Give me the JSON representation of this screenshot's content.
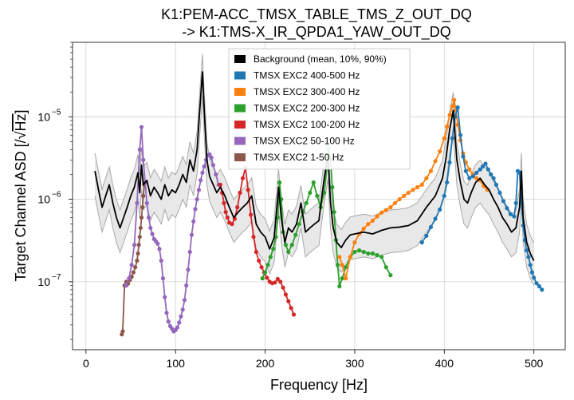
{
  "chart_data": {
    "type": "line",
    "title_lines": [
      "K1:PEM-ACC_TMSX_TABLE_TMS_Z_OUT_DQ",
      "-> K1:TMS-X_IR_QPDA1_YAW_OUT_DQ"
    ],
    "xlabel": "Frequency [Hz]",
    "ylabel_prefix": "Target Channel ASD [/",
    "ylabel_radicand": "Hz",
    "ylabel_suffix": "]",
    "xlim": [
      -15,
      535
    ],
    "ylim": [
      1.5e-08,
      8e-05
    ],
    "y_scale": "log",
    "grid": true,
    "legend_position": "upper-center",
    "x_ticks": [
      0,
      100,
      200,
      300,
      400,
      500
    ],
    "x_tick_labels": [
      "0",
      "100",
      "200",
      "300",
      "400",
      "500"
    ],
    "y_ticks": [
      1e-07,
      1e-06,
      1e-05
    ],
    "y_tick_labels_mantissa": [
      "10",
      "10",
      "10"
    ],
    "y_tick_labels_exponent": [
      "−7",
      "−6",
      "−5"
    ],
    "colors": {
      "background": "#000000",
      "band_fill": "#e8e8e8",
      "band_edge": "#a8a8a8",
      "exc_400_500": "#1f77b4",
      "exc_300_400": "#ff7f0e",
      "exc_200_300": "#2ca02c",
      "exc_100_200": "#d62728",
      "exc_50_100": "#9467bd",
      "exc_1_50": "#8c564b"
    },
    "series": [
      {
        "name": "Background (mean, 10%, 90%)",
        "color": "#000000",
        "x": [
          10,
          14,
          18,
          22,
          26,
          30,
          34,
          38,
          42,
          46,
          50,
          54,
          58,
          60,
          62,
          64,
          68,
          72,
          76,
          80,
          84,
          88,
          92,
          96,
          100,
          104,
          108,
          112,
          116,
          120,
          124,
          127,
          130,
          132,
          135,
          138,
          142,
          146,
          150,
          155,
          160,
          165,
          170,
          175,
          180,
          185,
          190,
          195,
          200,
          205,
          210,
          215,
          218,
          222,
          226,
          230,
          235,
          240,
          245,
          250,
          255,
          260,
          265,
          270,
          273,
          276,
          280,
          285,
          290,
          295,
          300,
          310,
          320,
          330,
          340,
          350,
          360,
          370,
          380,
          390,
          398,
          402,
          406,
          410,
          412,
          414,
          418,
          422,
          426,
          430,
          435,
          440,
          445,
          450,
          455,
          460,
          465,
          470,
          475,
          480,
          484,
          486,
          488,
          492,
          496,
          500
        ],
        "y": [
          2.2e-06,
          1.3e-06,
          8e-07,
          1.1e-06,
          1.5e-06,
          9e-07,
          6e-07,
          4.5e-07,
          6e-07,
          8e-07,
          1.1e-06,
          1.4e-06,
          2.1e-06,
          1.2e-06,
          2.6e-06,
          1.5e-06,
          1.7e-06,
          1.1e-06,
          1.4e-06,
          1.2e-06,
          1e-06,
          1.5e-06,
          1.1e-06,
          1.3e-06,
          1.2e-06,
          1.5e-06,
          2e-06,
          1.6e-06,
          3e-06,
          2.2e-06,
          4e-06,
          1.2e-05,
          3.5e-05,
          1.2e-05,
          3e-06,
          1.9e-06,
          1.5e-06,
          1.2e-06,
          1.4e-06,
          1.1e-06,
          8e-07,
          6e-07,
          7e-07,
          8e-07,
          9e-07,
          1.1e-06,
          5e-07,
          4e-07,
          3.5e-07,
          2.5e-07,
          3.4e-07,
          1.4e-06,
          6e-07,
          3e-07,
          4.5e-07,
          4e-07,
          5e-07,
          9e-07,
          4e-07,
          4.5e-07,
          5e-07,
          5.5e-07,
          1.5e-06,
          3.5e-06,
          9e-07,
          4.5e-07,
          3e-07,
          2.6e-07,
          3.2e-07,
          3.7e-07,
          3.8e-07,
          4e-07,
          3.8e-07,
          4.2e-07,
          4.5e-07,
          4.6e-07,
          4.8e-07,
          5.5e-07,
          8e-07,
          1.1e-06,
          1.8e-06,
          3.2e-06,
          7e-06,
          1.2e-05,
          6e-06,
          3e-06,
          1.6e-06,
          1e-06,
          9e-07,
          1.2e-06,
          1.6e-06,
          1.8e-06,
          1.5e-06,
          1.3e-06,
          1e-06,
          8e-07,
          6e-07,
          5e-07,
          4e-07,
          4.5e-07,
          8e-07,
          2.2e-06,
          6e-07,
          3e-07,
          2.2e-07,
          1.8e-07
        ]
      },
      {
        "name": "TMSX EXC2 400-500 Hz",
        "color": "#1f77b4",
        "x": [
          375,
          380,
          385,
          390,
          395,
          400,
          403,
          406,
          409,
          412,
          415,
          418,
          421,
          424,
          428,
          432,
          436,
          440,
          443,
          446,
          449,
          452,
          455,
          458,
          462,
          466,
          470,
          474,
          478,
          480,
          482,
          484,
          486,
          488,
          490,
          492,
          494,
          496,
          498,
          500,
          503,
          506,
          509
        ],
        "y": [
          3e-07,
          3.6e-07,
          4.6e-07,
          5.8e-07,
          7.5e-07,
          1.1e-06,
          1.6e-06,
          2.8e-06,
          5.5e-06,
          1e-05,
          1.3e-05,
          6e-06,
          3.3e-06,
          2.2e-06,
          1.8e-06,
          1.9e-06,
          2.1e-06,
          2.3e-06,
          2.5e-06,
          2.7e-06,
          2.3e-06,
          2e-06,
          1.8e-06,
          1.5e-06,
          1.2e-06,
          9.5e-07,
          7.8e-07,
          6.6e-07,
          6.2e-07,
          9e-07,
          2.2e-06,
          2.1e-06,
          9e-07,
          4.8e-07,
          3.2e-07,
          2.4e-07,
          2e-07,
          1.6e-07,
          1.3e-07,
          1.12e-07,
          9.6e-08,
          8.8e-08,
          8e-08
        ]
      },
      {
        "name": "TMSX EXC2 300-400 Hz",
        "color": "#ff7f0e",
        "x": [
          283,
          286,
          290,
          295,
          300,
          305,
          310,
          315,
          320,
          325,
          330,
          335,
          340,
          345,
          350,
          355,
          360,
          365,
          370,
          375,
          380,
          385,
          390,
          395,
          400,
          403,
          406,
          409,
          411,
          413,
          415,
          418,
          421,
          424,
          428,
          432,
          436,
          440,
          444,
          448
        ],
        "y": [
          2e-07,
          1.6e-07,
          1.1e-07,
          2e-07,
          3e-07,
          3.8e-07,
          4.4e-07,
          5e-07,
          5.5e-07,
          6.2e-07,
          6.9e-07,
          7.4e-07,
          8e-07,
          9e-07,
          1e-06,
          1.1e-06,
          1.2e-06,
          1.3e-06,
          1.4e-06,
          1.5e-06,
          1.8e-06,
          2.2e-06,
          2.9e-06,
          3.8e-06,
          5.5e-06,
          7.6e-06,
          1.05e-05,
          1.35e-05,
          1.6e-05,
          1.2e-05,
          8e-06,
          5.2e-06,
          3.6e-06,
          2.8e-06,
          2.3e-06,
          2e-06,
          1.8e-06,
          1.7e-06,
          1.45e-06,
          1.3e-06
        ]
      },
      {
        "name": "TMSX EXC2 200-300 Hz",
        "color": "#2ca02c",
        "x": [
          197,
          200,
          203,
          206,
          209,
          212,
          214,
          216,
          218,
          220,
          223,
          226,
          230,
          234,
          238,
          242,
          246,
          250,
          254,
          258,
          262,
          266,
          269,
          271,
          273,
          275,
          277,
          279,
          281,
          283,
          286,
          290,
          295,
          300,
          305,
          310,
          315,
          320,
          325,
          330,
          335,
          340
        ],
        "y": [
          1.1e-07,
          1.3e-07,
          1.6e-07,
          2e-07,
          2.5e-07,
          3.5e-07,
          6e-07,
          1.6e-06,
          1e-06,
          4e-07,
          2.8e-07,
          2.3e-07,
          2.8e-07,
          3.7e-07,
          5e-07,
          7e-07,
          9e-07,
          1.2e-06,
          1.6e-06,
          1.1e-06,
          8e-07,
          1.2e-06,
          2.5e-06,
          4e-06,
          3e-06,
          1.4e-06,
          7e-07,
          3.2e-07,
          1.6e-07,
          8.8e-08,
          1.1e-07,
          1.5e-07,
          2e-07,
          2.3e-07,
          2.4e-07,
          2.3e-07,
          2.2e-07,
          2.2e-07,
          2.1e-07,
          2e-07,
          1.5e-07,
          1.2e-07
        ]
      },
      {
        "name": "TMSX EXC2 100-200 Hz",
        "color": "#d62728",
        "x": [
          150,
          152,
          154,
          156,
          158,
          160,
          163,
          166,
          169,
          172,
          175,
          178,
          181,
          184,
          187,
          190,
          193,
          196,
          199,
          202,
          205,
          208,
          211,
          214,
          217,
          220,
          223,
          226,
          229,
          232
        ],
        "y": [
          1.5e-06,
          1.2e-06,
          9e-07,
          7e-07,
          6e-07,
          5.2e-07,
          5e-07,
          5.8e-07,
          8e-07,
          1.2e-06,
          1.8e-06,
          2.4e-06,
          1.3e-06,
          6.5e-07,
          3.5e-07,
          2.3e-07,
          1.8e-07,
          1.5e-07,
          1.3e-07,
          1.12e-07,
          1e-07,
          9.6e-08,
          9.8e-08,
          1.08e-07,
          1e-07,
          8.5e-08,
          7e-08,
          5.8e-08,
          4.8e-08,
          4e-08
        ]
      },
      {
        "name": "TMSX EXC2 50-100 Hz",
        "color": "#9467bd",
        "x": [
          45,
          48,
          51,
          54,
          57,
          60,
          62,
          64,
          66,
          68,
          70,
          72,
          74,
          76,
          78,
          80,
          82,
          84,
          86,
          88,
          90,
          92,
          94,
          96,
          98,
          100,
          102,
          104,
          106,
          108,
          110,
          112,
          114,
          116,
          118,
          120,
          122,
          124,
          126,
          128,
          130,
          132,
          134,
          136,
          138,
          140,
          142,
          145,
          148
        ],
        "y": [
          9e-08,
          1.1e-07,
          1.6e-07,
          2.8e-07,
          9e-07,
          4e-06,
          7.5e-06,
          3e-06,
          1.6e-06,
          9e-07,
          6e-07,
          4.5e-07,
          3.8e-07,
          3.3e-07,
          3.1e-07,
          2.9e-07,
          2.5e-07,
          1.8e-07,
          1.1e-07,
          6.5e-08,
          4.2e-08,
          3.3e-08,
          2.9e-08,
          2.7e-08,
          2.5e-08,
          2.6e-08,
          2.8e-08,
          3.2e-08,
          3.8e-08,
          4.6e-08,
          6e-08,
          9e-08,
          1.4e-07,
          2.3e-07,
          3.7e-07,
          5.4e-07,
          7.6e-07,
          1e-06,
          1.3e-06,
          1.7e-06,
          2.1e-06,
          2.5e-06,
          3e-06,
          3.4e-06,
          3.5e-06,
          3.2e-06,
          2.6e-06,
          2e-06,
          1.5e-06
        ]
      },
      {
        "name": "TMSX EXC2 1-50 Hz",
        "color": "#8c564b",
        "x": [
          40,
          41,
          43,
          45,
          47,
          49,
          51,
          53,
          55,
          57,
          58,
          59,
          60,
          61,
          62,
          63,
          64,
          65
        ],
        "y": [
          2.3e-08,
          2.5e-08,
          9e-08,
          1e-07,
          9.5e-08,
          1.05e-07,
          1.15e-07,
          1.3e-07,
          1.5e-07,
          1.8e-07,
          2.2e-07,
          2.8e-07,
          3.5e-07,
          4.5e-07,
          6e-07,
          8e-07,
          1.1e-06,
          1.5e-06
        ]
      }
    ]
  }
}
